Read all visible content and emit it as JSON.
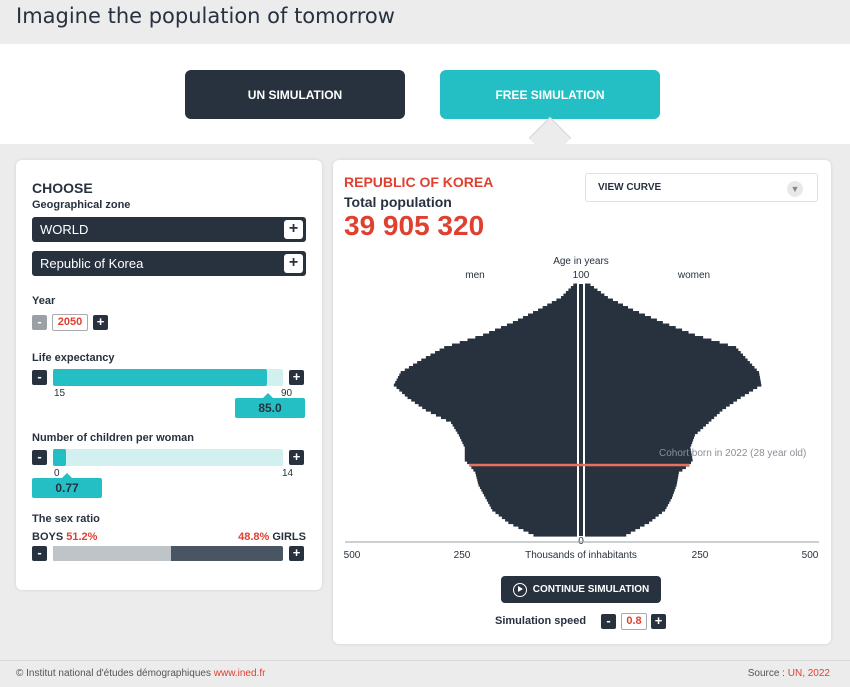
{
  "page_title": "Imagine the population of tomorrow",
  "tabs": {
    "un": "UN SIMULATION",
    "free": "FREE SIMULATION"
  },
  "left": {
    "choose": "CHOOSE",
    "geo_label": "Geographical zone",
    "zone1": "WORLD",
    "zone2": "Republic of Korea",
    "plus": "+",
    "minus": "-",
    "year_label": "Year",
    "year_value": "2050",
    "life_label": "Life expectancy",
    "life_min": "15",
    "life_max": "90",
    "life_value": "85.0",
    "life_fraction": 0.93,
    "children_label": "Number of children per woman",
    "children_min": "0",
    "children_max": "14",
    "children_value": "0.77",
    "children_fraction": 0.055,
    "sex_label": "The sex ratio",
    "boys_label": "BOYS",
    "boys_pct": "51.2%",
    "girls_pct": "48.8%",
    "girls_label": "GIRLS",
    "boys_fraction": 0.512
  },
  "right": {
    "country": "REPUBLIC OF KOREA",
    "total_label": "Total population",
    "total_value": "39 905 320",
    "view_curve": "VIEW CURVE",
    "age_label": "Age in years",
    "age_top": "100",
    "age_bottom": "0",
    "men": "men",
    "women": "women",
    "x_left_500": "500",
    "x_left_250": "250",
    "x_right_250": "250",
    "x_right_500": "500",
    "x_title": "Thousands of inhabitants",
    "cohort_label": "Cohort born in 2022 (28 year old)",
    "continue": "CONTINUE SIMULATION",
    "speed_label": "Simulation speed",
    "speed_value": "0.8"
  },
  "footer": {
    "credit": "© Institut national d'études démographiques",
    "site": "www.ined.fr",
    "source_label": "Source :",
    "source_value": "UN, 2022"
  },
  "colors": {
    "accent": "#23bfc4",
    "dark": "#28323f",
    "red": "#e0402f"
  },
  "icons": {
    "plus": "plus-icon",
    "minus": "minus-icon",
    "play": "play-icon",
    "chevron": "chevron-down-icon"
  },
  "chart_data": {
    "type": "bar",
    "orientation": "horizontal-pyramid",
    "y_axis": "Age in years",
    "x_axis": "Thousands of inhabitants",
    "xlim": [
      0,
      500
    ],
    "ages": [
      0,
      5,
      10,
      15,
      20,
      25,
      28,
      30,
      35,
      40,
      45,
      50,
      55,
      60,
      65,
      70,
      75,
      80,
      85,
      90,
      95,
      100
    ],
    "men": [
      95,
      150,
      185,
      200,
      215,
      222,
      235,
      245,
      245,
      258,
      275,
      330,
      370,
      400,
      385,
      340,
      290,
      205,
      140,
      85,
      35,
      8
    ],
    "women": [
      90,
      140,
      175,
      190,
      200,
      205,
      228,
      235,
      230,
      240,
      270,
      300,
      340,
      385,
      380,
      355,
      330,
      240,
      170,
      105,
      50,
      12
    ],
    "highlight_age": 28
  }
}
